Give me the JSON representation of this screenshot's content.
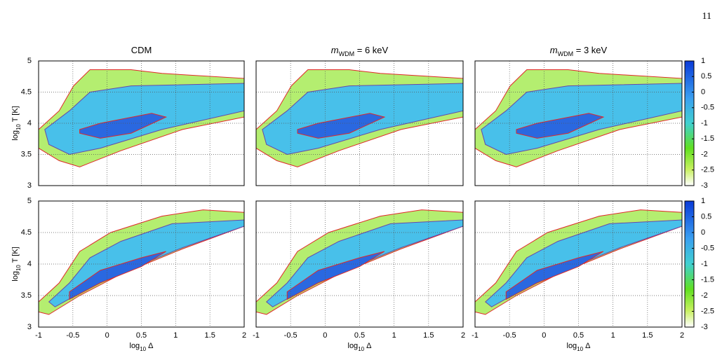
{
  "page_number": "11",
  "figure": {
    "columns": [
      {
        "symbol": "",
        "sub": "",
        "rest": "CDM"
      },
      {
        "symbol": "m",
        "sub": "WDM",
        "rest": " = 6 keV"
      },
      {
        "symbol": "m",
        "sub": "WDM",
        "rest": " = 3 keV"
      }
    ],
    "xlabel": {
      "main": "log",
      "sub": "10",
      "rest": " Δ"
    },
    "ylabel": {
      "main": "log",
      "sub": "10",
      "rest": " T [K]"
    },
    "xlim": [
      -1,
      2
    ],
    "xticks": [
      -1,
      -0.5,
      0,
      0.5,
      1,
      1.5,
      2
    ],
    "ylim": [
      3,
      5
    ],
    "yticks": [
      3,
      3.5,
      4,
      4.5,
      5
    ],
    "grid": true,
    "colorbar": {
      "lim": [
        -3,
        1
      ],
      "ticks": [
        1,
        0.5,
        0,
        -0.5,
        -1,
        -1.5,
        -2,
        -2.5,
        -3
      ]
    }
  }
}
